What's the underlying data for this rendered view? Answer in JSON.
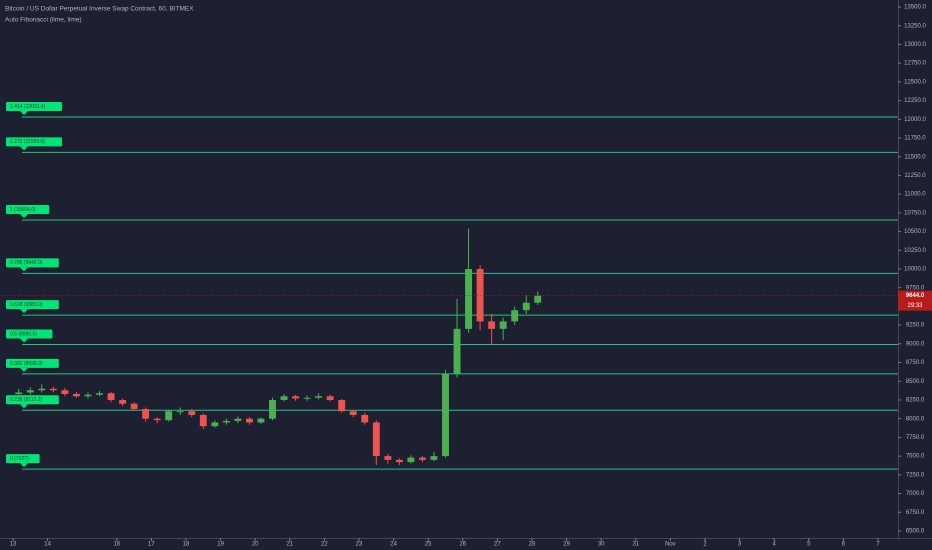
{
  "chart_data": {
    "type": "candlestick",
    "title": "Bitcoin / US Dollar Perpetual Inverse Swap Contract, 60, BITMEX",
    "subtitle": "Auto Fibonacci (lime, lime)",
    "x_labels": [
      "13",
      "14",
      null,
      "16",
      "17",
      "18",
      "19",
      "20",
      "21",
      "22",
      "23",
      "24",
      "25",
      "26",
      "27",
      "28",
      "29",
      "30",
      "31",
      "Nov",
      "2",
      "3",
      "4",
      "5",
      "6",
      "7"
    ],
    "candles_per_day": 3,
    "open": [
      8330,
      8350,
      8380,
      8400,
      8380,
      8330,
      8300,
      8320,
      8340,
      8250,
      8200,
      8130,
      8000,
      7980,
      8100,
      8100,
      8050,
      7900,
      7950,
      7970,
      8000,
      7950,
      8000,
      8250,
      8300,
      8270,
      8280,
      8300,
      8250,
      8100,
      8050,
      7950,
      7500,
      7450,
      7420,
      7480,
      7450,
      7500,
      8600,
      9200,
      10000,
      9300,
      9200,
      9300,
      9450,
      9550
    ],
    "high": [
      8400,
      8420,
      8460,
      8430,
      8410,
      8360,
      8350,
      8370,
      8360,
      8270,
      8220,
      8150,
      8020,
      8120,
      8150,
      8130,
      8070,
      7980,
      8000,
      8030,
      8020,
      8020,
      8280,
      8330,
      8320,
      8310,
      8340,
      8320,
      8260,
      8120,
      8080,
      7980,
      7530,
      7470,
      7510,
      7500,
      7560,
      8650,
      9600,
      10540,
      10050,
      9400,
      9350,
      9500,
      9650,
      9700
    ],
    "low": [
      8300,
      8320,
      8350,
      8350,
      8300,
      8280,
      8270,
      8300,
      8220,
      8170,
      8100,
      7960,
      7940,
      7960,
      8050,
      8020,
      7860,
      7880,
      7920,
      7940,
      7920,
      7930,
      7980,
      8230,
      8240,
      8240,
      8260,
      8230,
      8080,
      8020,
      7920,
      7380,
      7400,
      7380,
      7400,
      7420,
      7430,
      7480,
      8550,
      9150,
      9180,
      9000,
      9050,
      9250,
      9400,
      9520
    ],
    "close": [
      8350,
      8380,
      8400,
      8380,
      8330,
      8300,
      8320,
      8340,
      8250,
      8200,
      8130,
      8000,
      7980,
      8100,
      8100,
      8050,
      7900,
      7950,
      7970,
      8000,
      7950,
      8000,
      8250,
      8300,
      8270,
      8280,
      8300,
      8250,
      8100,
      8050,
      7950,
      7500,
      7450,
      7420,
      7480,
      7450,
      7500,
      8600,
      9200,
      10000,
      9300,
      9200,
      9300,
      9450,
      9550,
      9644
    ],
    "up_color": "#4caf50",
    "down_color": "#ef5350",
    "fib_color": "#26c281",
    "fib_label_color": "#00e676",
    "fib_levels": [
      {
        "label": "1.414 (12031.4)",
        "value": 12031.4
      },
      {
        "label": "1.272 (11559.0)",
        "value": 11559.0
      },
      {
        "label": "1 (10654.0)",
        "value": 10654.0
      },
      {
        "label": "0.786 (9942.0)",
        "value": 9942.0
      },
      {
        "label": "0.618 (9383.0)",
        "value": 9383.0
      },
      {
        "label": "0.5 (8990.5)",
        "value": 8990.5
      },
      {
        "label": "0.382 (8598.0)",
        "value": 8598.0
      },
      {
        "label": "0.236 (8112.2)",
        "value": 8112.2
      },
      {
        "label": "0 (7327)",
        "value": 7327
      }
    ],
    "last_price": {
      "value": 9644.0,
      "label": "9644.0",
      "countdown": "29:33",
      "color": "#b71c1c"
    },
    "ylim": [
      6406,
      13594
    ],
    "yticks": [
      {
        "value": 6500,
        "label": "6500.0"
      },
      {
        "value": 6750,
        "label": "6750.0"
      },
      {
        "value": 7000,
        "label": "7000.0"
      },
      {
        "value": 7250,
        "label": "7250.0"
      },
      {
        "value": 7500,
        "label": "7500.0"
      },
      {
        "value": 7750,
        "label": "7750.0"
      },
      {
        "value": 8000,
        "label": "8000.0"
      },
      {
        "value": 8250,
        "label": "8250.0"
      },
      {
        "value": 8500,
        "label": "8500.0"
      },
      {
        "value": 8750,
        "label": "8750.0"
      },
      {
        "value": 9000,
        "label": "9000.0"
      },
      {
        "value": 9250,
        "label": "9250.0"
      },
      {
        "value": 9500,
        "label": "9500.0"
      },
      {
        "value": 9750,
        "label": "9750.0"
      },
      {
        "value": 10000,
        "label": "10000.0"
      },
      {
        "value": 10250,
        "label": "10250.0"
      },
      {
        "value": 10500,
        "label": "10500.0"
      },
      {
        "value": 10750,
        "label": "10750.0"
      },
      {
        "value": 11000,
        "label": "11000.0"
      },
      {
        "value": 11250,
        "label": "11250.0"
      },
      {
        "value": 11500,
        "label": "11500.0"
      },
      {
        "value": 11750,
        "label": "11750.0"
      },
      {
        "value": 12000,
        "label": "12000.0"
      },
      {
        "value": 12250,
        "label": "12250.0"
      },
      {
        "value": 12500,
        "label": "12500.0"
      },
      {
        "value": 12750,
        "label": "12750.0"
      },
      {
        "value": 13000,
        "label": "13000.0"
      },
      {
        "value": 13250,
        "label": "13250.0"
      },
      {
        "value": 13500,
        "label": "13500.0"
      }
    ]
  }
}
